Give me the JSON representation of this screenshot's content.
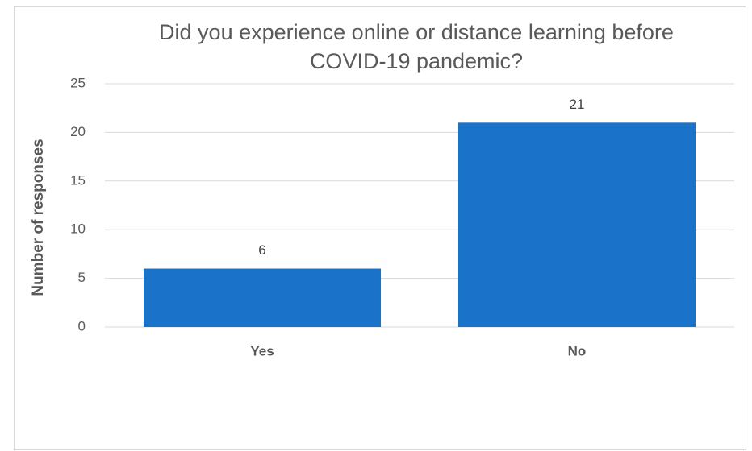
{
  "chart_data": {
    "type": "bar",
    "title": "Did you experience online or distance learning before COVID-19 pandemic?",
    "y_label": "Number of responses",
    "categories": [
      "Yes",
      "No"
    ],
    "values": [
      6,
      21
    ],
    "color": "#1a73c9",
    "ylim": [
      0,
      25
    ],
    "yticks": [
      0,
      5,
      10,
      15,
      20,
      25
    ],
    "grid": true
  }
}
